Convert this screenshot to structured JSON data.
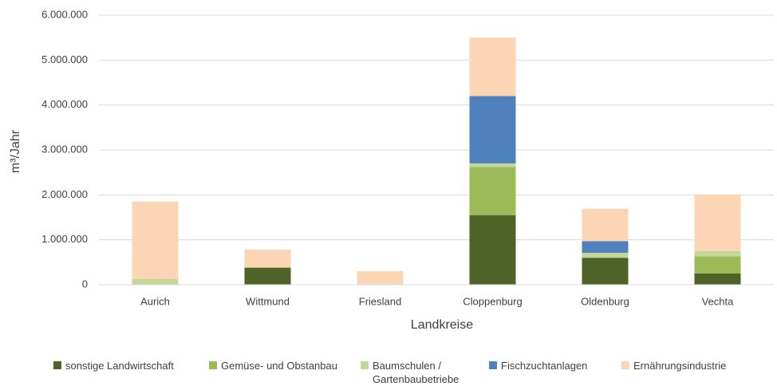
{
  "chart_data": {
    "type": "bar",
    "stacked": true,
    "y_label": "m³/Jahr",
    "x_label": "Landkreise",
    "categories": [
      "Aurich",
      "Wittmund",
      "Friesland",
      "Cloppenburg",
      "Oldenburg",
      "Vechta"
    ],
    "series": [
      {
        "name": "sonstige Landwirtschaft",
        "color": "#4f6228",
        "values": [
          0,
          380000,
          0,
          1550000,
          600000,
          250000
        ]
      },
      {
        "name": "Gemüse- und Obstanbau",
        "color": "#9bbb59",
        "values": [
          0,
          0,
          0,
          1070000,
          0,
          380000
        ]
      },
      {
        "name": "Baumschulen / Gartenbaubetriebe",
        "color": "#c4d79b",
        "values": [
          130000,
          0,
          0,
          80000,
          110000,
          120000
        ]
      },
      {
        "name": "Fischzuchtanlagen",
        "color": "#4f81bd",
        "values": [
          0,
          0,
          0,
          1500000,
          260000,
          0
        ]
      },
      {
        "name": "Ernährungsindustrie",
        "color": "#fcd5b5",
        "values": [
          1720000,
          400000,
          300000,
          1300000,
          720000,
          1250000
        ]
      }
    ],
    "ylim": [
      0,
      6000000
    ],
    "yticks": [
      0,
      {
        "value": 1000000,
        "label": "1.000.000"
      },
      {
        "value": 2000000,
        "label": "2.000.000"
      },
      {
        "value": 3000000,
        "label": "3.000.000"
      },
      {
        "value": 4000000,
        "label": "4.000.000"
      },
      {
        "value": 5000000,
        "label": "5.000.000"
      },
      {
        "value": 6000000,
        "label": "6.000.000"
      }
    ],
    "grid": true,
    "legend": "bottom"
  }
}
